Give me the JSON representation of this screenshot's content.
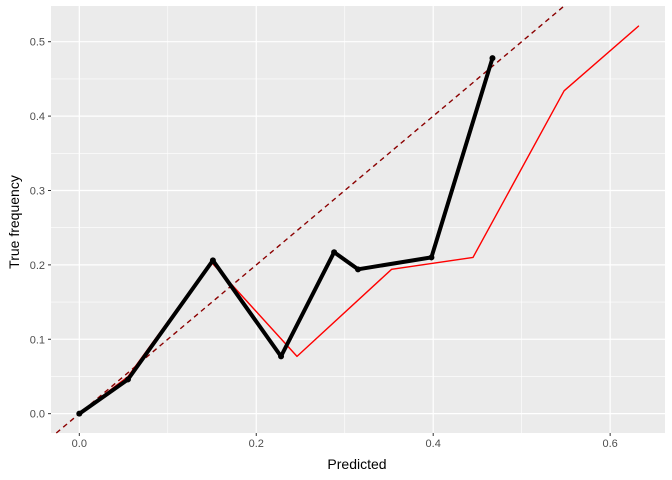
{
  "chart_data": {
    "type": "line",
    "title": "",
    "xlabel": "Predicted",
    "ylabel": "True frequency",
    "xlim": [
      -0.032,
      0.662
    ],
    "ylim": [
      -0.026,
      0.548
    ],
    "x_ticks": [
      0.0,
      0.2,
      0.4,
      0.6
    ],
    "x_tick_labels": [
      "0.0",
      "0.2",
      "0.4",
      "0.6"
    ],
    "y_ticks": [
      0.0,
      0.1,
      0.2,
      0.3,
      0.4,
      0.5
    ],
    "y_tick_labels": [
      "0.0",
      "0.1",
      "0.2",
      "0.3",
      "0.4",
      "0.5"
    ],
    "grid": true,
    "legend": "none",
    "background_color": "#ebebeb",
    "reference_line": {
      "slope": 1,
      "intercept": 0,
      "style": "dashed",
      "color": "#8b0000"
    },
    "series": [
      {
        "color": "#ff0000",
        "style": "thin-line",
        "markers": false,
        "x": [
          0.0,
          0.055,
          0.149,
          0.246,
          0.353,
          0.445,
          0.548,
          0.632
        ],
        "y": [
          0.0,
          0.05,
          0.204,
          0.077,
          0.194,
          0.21,
          0.434,
          0.521
        ]
      },
      {
        "color": "#000000",
        "style": "thick-line",
        "markers": true,
        "x": [
          0.0,
          0.055,
          0.151,
          0.228,
          0.288,
          0.315,
          0.398,
          0.467
        ],
        "y": [
          0.0,
          0.046,
          0.206,
          0.077,
          0.217,
          0.194,
          0.21,
          0.478
        ]
      }
    ]
  }
}
